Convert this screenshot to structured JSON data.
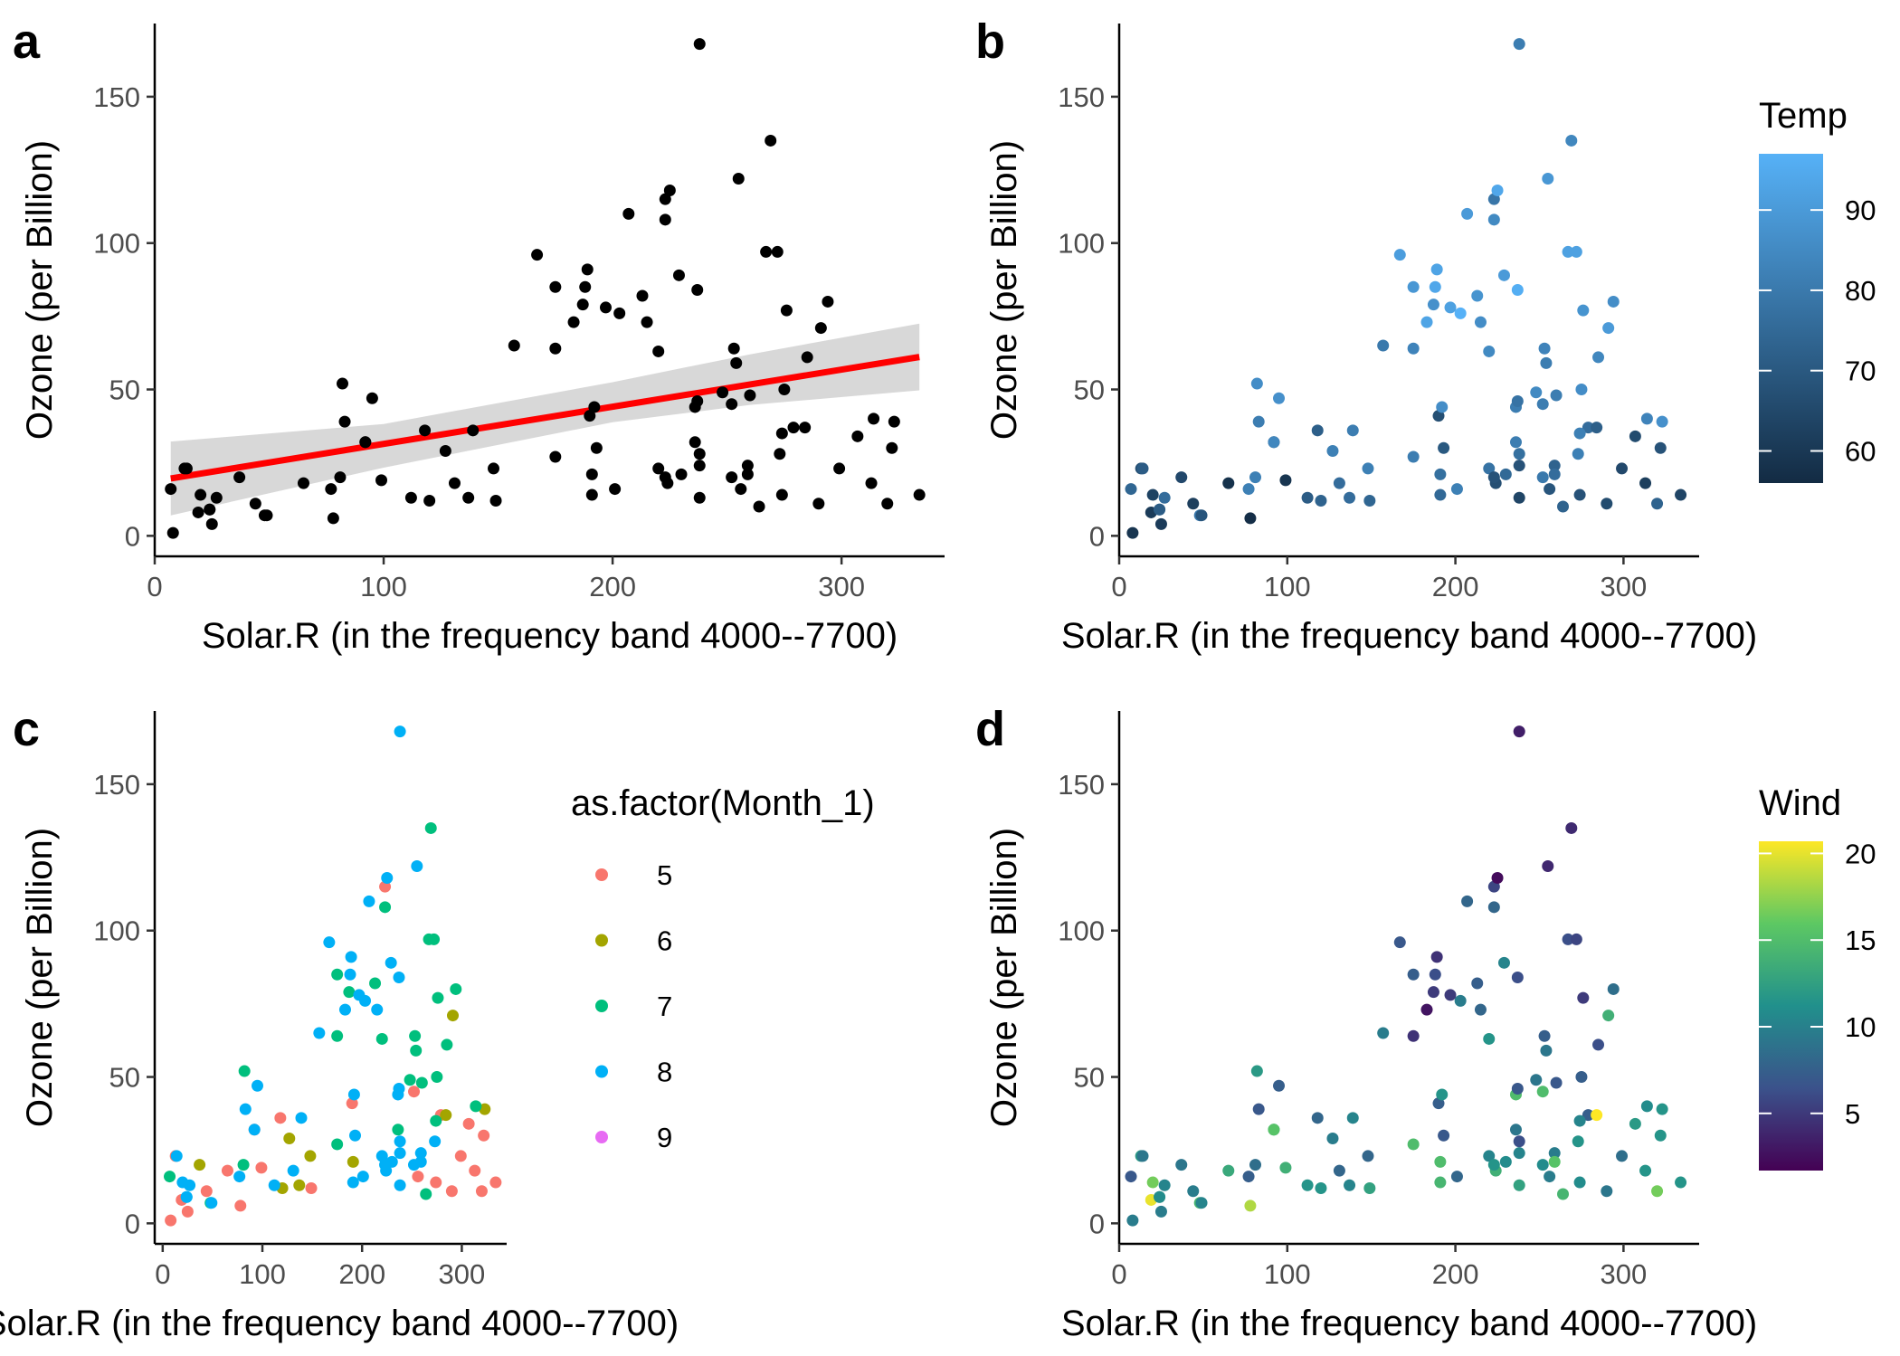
{
  "chart_data": [
    {
      "panel": "a",
      "type": "scatter",
      "xlabel": "Solar.R (in the frequency band 4000--7700)",
      "ylabel": "Ozone (per Billion)",
      "xlim": [
        0,
        345
      ],
      "ylim": [
        -7,
        175
      ],
      "xticks": [
        0,
        100,
        200,
        300
      ],
      "yticks": [
        0,
        50,
        100,
        150
      ],
      "tick_labels_x": [
        "0",
        "100",
        "200",
        "300"
      ],
      "tick_labels_y": [
        "0",
        "50",
        "100",
        "150"
      ],
      "point_color": "#000000",
      "fit_line": {
        "x": [
          7,
          334
        ],
        "y": [
          19.6,
          61.1
        ],
        "color": "#ff0000",
        "band_color": "#bebebe"
      },
      "confidence_band": {
        "x": [
          7,
          100,
          200,
          260,
          334
        ],
        "lower": [
          7.0,
          23.3,
          38.8,
          44.7,
          49.7
        ],
        "upper": [
          32.2,
          38.2,
          52.5,
          62.0,
          72.5
        ]
      }
    },
    {
      "panel": "b",
      "type": "scatter",
      "xlabel": "Solar.R (in the frequency band 4000--7700)",
      "ylabel": "Ozone (per Billion)",
      "xlim": [
        0,
        345
      ],
      "ylim": [
        -7,
        175
      ],
      "xticks": [
        0,
        100,
        200,
        300
      ],
      "yticks": [
        0,
        50,
        100,
        150
      ],
      "tick_labels_x": [
        "0",
        "100",
        "200",
        "300"
      ],
      "tick_labels_y": [
        "0",
        "50",
        "100",
        "150"
      ],
      "color_by": "Temp",
      "legend": {
        "title": "Temp",
        "type": "colorbar",
        "range": [
          56,
          97
        ],
        "ticks": [
          60,
          70,
          80,
          90
        ],
        "tick_labels": [
          "60",
          "70",
          "80",
          "90"
        ],
        "colors": [
          "#132b43",
          "#56b1f7"
        ],
        "position": "right"
      }
    },
    {
      "panel": "c",
      "type": "scatter",
      "xlabel": "Solar.R (in the frequency band 4000--7700)",
      "ylabel": "Ozone (per Billion)",
      "xlim": [
        -8,
        345
      ],
      "ylim": [
        -7,
        175
      ],
      "xticks": [
        0,
        100,
        200,
        300
      ],
      "yticks": [
        0,
        50,
        100,
        150
      ],
      "tick_labels_x": [
        "0",
        "100",
        "200",
        "300"
      ],
      "tick_labels_y": [
        "0",
        "50",
        "100",
        "150"
      ],
      "color_by": "Month",
      "legend": {
        "title": "as.factor(Month_1)",
        "type": "discrete",
        "position": "right",
        "entries": [
          {
            "label": "5",
            "color": "#f8766d"
          },
          {
            "label": "6",
            "color": "#a3a500"
          },
          {
            "label": "7",
            "color": "#00bf7d"
          },
          {
            "label": "8",
            "color": "#00b0f6"
          },
          {
            "label": "9",
            "color": "#e76bf3"
          }
        ]
      }
    },
    {
      "panel": "d",
      "type": "scatter",
      "xlabel": "Solar.R (in the frequency band 4000--7700)",
      "ylabel": "Ozone (per Billion)",
      "xlim": [
        0,
        345
      ],
      "ylim": [
        -7,
        175
      ],
      "xticks": [
        0,
        100,
        200,
        300
      ],
      "yticks": [
        0,
        50,
        100,
        150
      ],
      "tick_labels_x": [
        "0",
        "100",
        "200",
        "300"
      ],
      "tick_labels_y": [
        "0",
        "50",
        "100",
        "150"
      ],
      "color_by": "Wind",
      "legend": {
        "title": "Wind",
        "type": "colorbar",
        "range": [
          1.7,
          20.7
        ],
        "ticks": [
          5,
          10,
          15,
          20
        ],
        "tick_labels": [
          "5",
          "10",
          "15",
          "20"
        ],
        "colors": [
          "#440154",
          "#3b528b",
          "#21908c",
          "#5dc863",
          "#fde725"
        ],
        "position": "right"
      }
    }
  ],
  "data_points": {
    "fields": [
      "ozone",
      "solar_r",
      "wind",
      "temp",
      "month"
    ],
    "rows": [
      [
        41,
        190,
        7.4,
        67,
        5
      ],
      [
        36,
        118,
        8.0,
        72,
        5
      ],
      [
        12,
        149,
        12.6,
        74,
        5
      ],
      [
        18,
        313,
        11.5,
        62,
        5
      ],
      [
        23,
        299,
        8.6,
        65,
        5
      ],
      [
        19,
        99,
        13.8,
        59,
        5
      ],
      [
        8,
        19,
        20.1,
        61,
        5
      ],
      [
        16,
        256,
        9.7,
        69,
        5
      ],
      [
        11,
        290,
        9.2,
        66,
        5
      ],
      [
        14,
        274,
        10.9,
        68,
        5
      ],
      [
        18,
        65,
        13.2,
        58,
        5
      ],
      [
        14,
        334,
        11.5,
        64,
        5
      ],
      [
        34,
        307,
        12.0,
        66,
        5
      ],
      [
        6,
        78,
        18.4,
        57,
        5
      ],
      [
        30,
        322,
        11.5,
        68,
        5
      ],
      [
        11,
        44,
        9.7,
        62,
        5
      ],
      [
        1,
        8,
        9.7,
        59,
        5
      ],
      [
        11,
        320,
        16.6,
        73,
        5
      ],
      [
        4,
        25,
        9.7,
        61,
        5
      ],
      [
        32,
        92,
        12.0,
        61,
        5
      ],
      [
        23,
        13,
        12.0,
        67,
        5
      ],
      [
        45,
        252,
        14.9,
        81,
        5
      ],
      [
        115,
        223,
        5.7,
        79,
        5
      ],
      [
        37,
        279,
        7.4,
        76,
        5
      ],
      [
        29,
        127,
        9.7,
        82,
        6
      ],
      [
        71,
        291,
        13.8,
        90,
        6
      ],
      [
        39,
        323,
        11.5,
        87,
        6
      ],
      [
        23,
        148,
        8.0,
        82,
        6
      ],
      [
        21,
        191,
        14.9,
        77,
        6
      ],
      [
        37,
        284,
        20.7,
        72,
        6
      ],
      [
        20,
        37,
        9.2,
        65,
        6
      ],
      [
        12,
        120,
        11.5,
        73,
        6
      ],
      [
        13,
        137,
        10.3,
        76,
        6
      ],
      [
        135,
        269,
        4.1,
        84,
        7
      ],
      [
        49,
        248,
        9.2,
        85,
        7
      ],
      [
        32,
        236,
        9.2,
        81,
        7
      ],
      [
        64,
        175,
        4.6,
        83,
        7
      ],
      [
        40,
        314,
        10.9,
        83,
        7
      ],
      [
        77,
        276,
        5.1,
        88,
        7
      ],
      [
        97,
        267,
        6.3,
        92,
        7
      ],
      [
        97,
        272,
        5.7,
        92,
        7
      ],
      [
        85,
        175,
        7.4,
        89,
        7
      ],
      [
        10,
        264,
        14.3,
        73,
        7
      ],
      [
        27,
        175,
        14.9,
        81,
        7
      ],
      [
        7,
        48,
        14.3,
        80,
        7
      ],
      [
        48,
        260,
        6.9,
        81,
        7
      ],
      [
        35,
        274,
        10.3,
        82,
        7
      ],
      [
        61,
        285,
        6.3,
        84,
        7
      ],
      [
        79,
        187,
        5.1,
        87,
        7
      ],
      [
        63,
        220,
        11.5,
        85,
        7
      ],
      [
        16,
        7,
        6.9,
        74,
        7
      ],
      [
        80,
        294,
        8.6,
        86,
        7
      ],
      [
        108,
        223,
        8.0,
        85,
        7
      ],
      [
        20,
        81,
        8.6,
        82,
        7
      ],
      [
        52,
        82,
        12.0,
        86,
        7
      ],
      [
        82,
        213,
        7.4,
        88,
        7
      ],
      [
        50,
        275,
        7.4,
        86,
        7
      ],
      [
        64,
        253,
        7.4,
        83,
        7
      ],
      [
        59,
        254,
        9.2,
        81,
        7
      ],
      [
        39,
        83,
        6.9,
        81,
        8
      ],
      [
        9,
        24,
        13.8,
        81,
        8
      ],
      [
        16,
        77,
        7.4,
        82,
        8
      ],
      [
        122,
        255,
        4.0,
        89,
        8
      ],
      [
        89,
        229,
        10.3,
        90,
        8
      ],
      [
        110,
        207,
        8.0,
        90,
        8
      ],
      [
        44,
        192,
        11.5,
        86,
        8
      ],
      [
        28,
        273,
        11.5,
        82,
        8
      ],
      [
        65,
        157,
        9.7,
        80,
        8
      ],
      [
        168,
        238,
        3.4,
        81,
        8
      ],
      [
        73,
        215,
        8.0,
        86,
        8
      ],
      [
        76,
        203,
        9.7,
        97,
        8
      ],
      [
        118,
        225,
        2.3,
        94,
        8
      ],
      [
        84,
        237,
        6.3,
        96,
        8
      ],
      [
        85,
        188,
        6.3,
        94,
        8
      ],
      [
        96,
        167,
        6.9,
        91,
        8
      ],
      [
        78,
        197,
        5.1,
        92,
        8
      ],
      [
        73,
        183,
        2.8,
        93,
        8
      ],
      [
        91,
        189,
        4.6,
        93,
        8
      ],
      [
        47,
        95,
        7.4,
        87,
        8
      ],
      [
        32,
        92,
        15.5,
        84,
        8
      ],
      [
        20,
        252,
        10.9,
        80,
        8
      ],
      [
        23,
        220,
        10.3,
        78,
        8
      ],
      [
        21,
        230,
        10.9,
        75,
        8
      ],
      [
        24,
        259,
        9.7,
        73,
        8
      ],
      [
        44,
        236,
        14.9,
        81,
        8
      ],
      [
        21,
        259,
        15.5,
        76,
        8
      ],
      [
        28,
        238,
        6.3,
        77,
        8
      ],
      [
        9,
        24,
        10.9,
        71,
        8
      ],
      [
        13,
        112,
        11.5,
        71,
        8
      ],
      [
        46,
        237,
        6.9,
        78,
        8
      ],
      [
        18,
        224,
        13.8,
        67,
        8
      ],
      [
        13,
        27,
        10.3,
        76,
        8
      ],
      [
        24,
        238,
        10.3,
        68,
        8
      ],
      [
        16,
        201,
        8.0,
        82,
        8
      ],
      [
        13,
        238,
        12.6,
        64,
        8
      ],
      [
        23,
        14,
        9.2,
        71,
        8
      ],
      [
        36,
        139,
        10.3,
        81,
        8
      ],
      [
        7,
        49,
        10.3,
        69,
        8
      ],
      [
        14,
        20,
        16.6,
        63,
        8
      ],
      [
        30,
        193,
        6.9,
        70,
        8
      ],
      [
        14,
        191,
        14.3,
        75,
        8
      ],
      [
        18,
        131,
        8.0,
        76,
        8
      ],
      [
        20,
        223,
        11.5,
        68,
        8
      ]
    ]
  }
}
